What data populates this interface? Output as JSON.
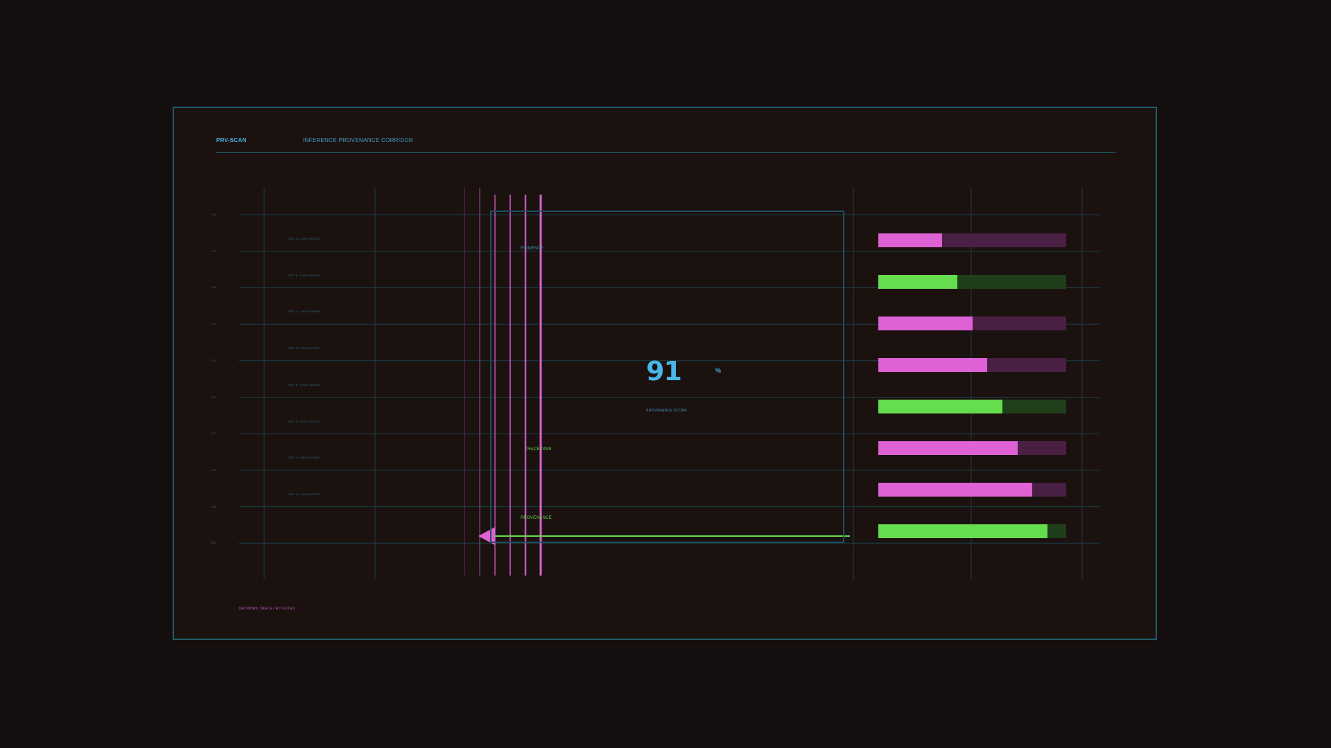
{
  "header": {
    "brand": "PRV-SCAN",
    "title": "INFERENCE PROVENANCE CORRIDOR"
  },
  "rows": [
    {
      "id": "128",
      "ref": "SRC-A / HASH 8A1BF0"
    },
    {
      "id": "172",
      "ref": "SRC-B / HASH 8A1BF3"
    },
    {
      "id": "143",
      "ref": "SRC-C / HASH 8A1BF6"
    },
    {
      "id": "172",
      "ref": "SRC-D / HASH 8A1BF7"
    },
    {
      "id": "153",
      "ref": "SRC-E / HASH 8A1BF8"
    },
    {
      "id": "131",
      "ref": "SRC-F / HASH 8A1BF1"
    },
    {
      "id": "141",
      "ref": "SRC-G / HASH 8A1BF2"
    },
    {
      "id": "136",
      "ref": "SRC-H / HASH 8A1BF5"
    },
    {
      "id": "148",
      "ref": ""
    },
    {
      "id": "099",
      "ref": ""
    }
  ],
  "corridor": {
    "evidence_label": "EVIDENCE",
    "trace_label": "TRACE 0099",
    "provenance_label": "PROVENANCE"
  },
  "score": {
    "value": "91",
    "unit": "%",
    "label": "PROVENANCE SCORE"
  },
  "bars": [
    {
      "fraction": 0.34,
      "color": "pink"
    },
    {
      "fraction": 0.42,
      "color": "green"
    },
    {
      "fraction": 0.5,
      "color": "pink"
    },
    {
      "fraction": 0.58,
      "color": "pink"
    },
    {
      "fraction": 0.66,
      "color": "green"
    },
    {
      "fraction": 0.74,
      "color": "pink"
    },
    {
      "fraction": 0.82,
      "color": "pink"
    },
    {
      "fraction": 0.9,
      "color": "green"
    }
  ],
  "footer": {
    "tag": "NETWORK TRACE / ATTESTED"
  },
  "colors": {
    "accent_blue": "#49b6e8",
    "pink": "#de62d6",
    "pink_track": "#4a1f44",
    "green": "#66dd4e",
    "green_track": "#1e3f1a",
    "frame": "#1f5c6e"
  }
}
